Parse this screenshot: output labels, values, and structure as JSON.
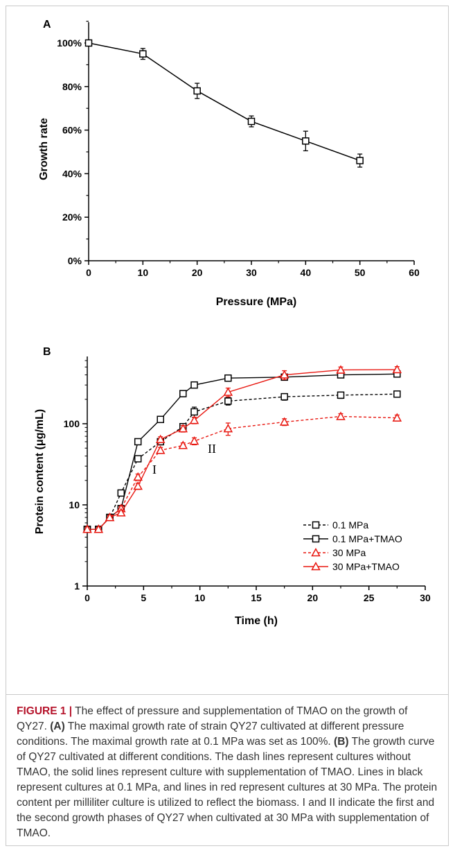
{
  "chart_data": [
    {
      "type": "line",
      "panel_label": "A",
      "xlabel": "Pressure (MPa)",
      "ylabel": "Growth rate",
      "xlim": [
        0,
        60
      ],
      "ylim": [
        0,
        100
      ],
      "x_ticks": [
        "0",
        "10",
        "20",
        "30",
        "40",
        "50",
        "60"
      ],
      "y_ticks": [
        "0%",
        "20%",
        "40%",
        "60%",
        "80%",
        "100%"
      ],
      "series": [
        {
          "marker": "open-square",
          "color": "#000000",
          "line": "solid",
          "x": [
            0,
            10,
            20,
            30,
            40,
            50
          ],
          "y": [
            100,
            95,
            78,
            64,
            55,
            46
          ],
          "err": [
            1.0,
            2.5,
            3.5,
            2.5,
            4.5,
            3.0
          ]
        }
      ]
    },
    {
      "type": "line",
      "panel_label": "B",
      "xlabel": "Time (h)",
      "ylabel": "Protein content  (μg/mL)",
      "xlim": [
        0,
        30
      ],
      "ylim": [
        1,
        600
      ],
      "y_scale": "log",
      "x_ticks": [
        "0",
        "5",
        "10",
        "15",
        "20",
        "25",
        "30"
      ],
      "y_ticks": [
        "1",
        "10",
        "100"
      ],
      "legend_position": "bottom-right",
      "annotations": [
        "I",
        "II"
      ],
      "series": [
        {
          "name": "0.1 MPa",
          "color": "#000000",
          "line": "dashed",
          "marker": "open-square",
          "x": [
            0,
            1,
            2,
            3,
            4.5,
            6.5,
            8.5,
            9.5,
            12.5,
            17.5,
            22.5,
            27.5
          ],
          "y": [
            5,
            5,
            7,
            14,
            37,
            60,
            92,
            140,
            190,
            215,
            225,
            232
          ],
          "err": [
            0.3,
            0.3,
            0.4,
            1,
            2,
            5,
            8,
            20,
            20,
            20,
            20,
            18
          ]
        },
        {
          "name": "0.1 MPa+TMAO",
          "color": "#000000",
          "line": "solid",
          "marker": "open-square",
          "x": [
            0,
            1,
            2,
            3,
            4.5,
            6.5,
            8.5,
            9.5,
            12.5,
            17.5,
            22.5,
            27.5
          ],
          "y": [
            5,
            5,
            7,
            9,
            60,
            113,
            235,
            300,
            365,
            375,
            400,
            410
          ],
          "err": [
            0.3,
            0.3,
            0.4,
            0.6,
            4,
            8,
            20,
            20,
            30,
            25,
            20,
            20
          ]
        },
        {
          "name": "30 MPa",
          "color": "#e8160f",
          "line": "dashed",
          "marker": "open-triangle",
          "x": [
            0,
            1,
            2,
            3,
            4.5,
            6.5,
            8.5,
            9.5,
            12.5,
            17.5,
            22.5,
            27.5
          ],
          "y": [
            5,
            5,
            7,
            9,
            22,
            47,
            54,
            61,
            87,
            105,
            123,
            118
          ],
          "err": [
            0.3,
            0.3,
            0.4,
            0.6,
            2,
            4,
            4,
            6,
            15,
            10,
            10,
            10
          ]
        },
        {
          "name": "30 MPa+TMAO",
          "color": "#e8160f",
          "line": "solid",
          "marker": "open-triangle",
          "x": [
            0,
            1,
            2,
            3,
            4.5,
            6.5,
            8.5,
            9.5,
            12.5,
            17.5,
            22.5,
            27.5
          ],
          "y": [
            5,
            5,
            7,
            8,
            17,
            64,
            87,
            110,
            245,
            400,
            460,
            465
          ],
          "err": [
            0.3,
            0.3,
            0.4,
            0.5,
            1.5,
            5,
            8,
            10,
            30,
            50,
            40,
            40
          ]
        }
      ]
    }
  ],
  "caption": {
    "figure_label": "FIGURE 1 |",
    "intro": " The effect of pressure and supplementation of TMAO on the growth of QY27. ",
    "ref_a": "(A)",
    "text_a": " The maximal growth rate of strain QY27 cultivated at different pressure conditions. The maximal growth rate at 0.1 MPa was set as 100%. ",
    "ref_b": "(B)",
    "text_b": " The growth curve of QY27 cultivated at different conditions. The dash lines represent cultures without TMAO, the solid lines represent culture with supplementation of TMAO. Lines in black represent cultures at 0.1 MPa, and lines in red represent cultures at 30 MPa. The protein content per milliliter culture is utilized to reflect the biomass. I and II indicate the first and the second growth phases of QY27 when cultivated at 30 MPa with supplementation of TMAO."
  }
}
